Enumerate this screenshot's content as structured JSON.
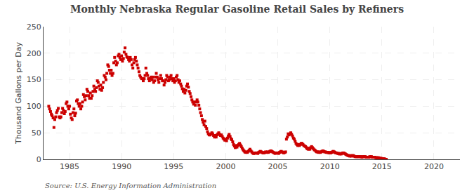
{
  "chart_data": {
    "type": "scatter",
    "title": "Monthly Nebraska Regular Gasoline Retail Sales by Refiners",
    "ylabel": "Thousand Gallons per Day",
    "annotations": [
      "Source: U.S. Energy Information Administration"
    ],
    "color": "#cc0000",
    "marker": "square",
    "grid": true,
    "xlim": [
      1982.5,
      2022.5
    ],
    "xticks": [
      1985,
      1990,
      1995,
      2000,
      2005,
      2010,
      2015,
      2020
    ],
    "ylim": [
      0,
      250
    ],
    "yticks": [
      0,
      50,
      100,
      150,
      200,
      250
    ],
    "x": [
      1983.0,
      1983.08,
      1983.17,
      1983.25,
      1983.33,
      1983.42,
      1983.5,
      1983.58,
      1983.67,
      1983.75,
      1983.83,
      1983.92,
      1984.0,
      1984.08,
      1984.17,
      1984.25,
      1984.33,
      1984.42,
      1984.5,
      1984.58,
      1984.67,
      1984.75,
      1984.83,
      1984.92,
      1985.0,
      1985.08,
      1985.17,
      1985.25,
      1985.33,
      1985.42,
      1985.5,
      1985.58,
      1985.67,
      1985.75,
      1985.83,
      1985.92,
      1986.0,
      1986.08,
      1986.17,
      1986.25,
      1986.33,
      1986.42,
      1986.5,
      1986.58,
      1986.67,
      1986.75,
      1986.83,
      1986.92,
      1987.0,
      1987.08,
      1987.17,
      1987.25,
      1987.33,
      1987.42,
      1987.5,
      1987.58,
      1987.67,
      1987.75,
      1987.83,
      1987.92,
      1988.0,
      1988.08,
      1988.17,
      1988.25,
      1988.33,
      1988.42,
      1988.5,
      1988.58,
      1988.67,
      1988.75,
      1988.83,
      1988.92,
      1989.0,
      1989.08,
      1989.17,
      1989.25,
      1989.33,
      1989.42,
      1989.5,
      1989.58,
      1989.67,
      1989.75,
      1989.83,
      1989.92,
      1990.0,
      1990.08,
      1990.17,
      1990.25,
      1990.33,
      1990.42,
      1990.5,
      1990.58,
      1990.67,
      1990.75,
      1990.83,
      1990.92,
      1991.0,
      1991.08,
      1991.17,
      1991.25,
      1991.33,
      1991.42,
      1991.5,
      1991.58,
      1991.67,
      1991.75,
      1991.83,
      1991.92,
      1992.0,
      1992.08,
      1992.17,
      1992.25,
      1992.33,
      1992.42,
      1992.5,
      1992.58,
      1992.67,
      1992.75,
      1992.83,
      1992.92,
      1993.0,
      1993.08,
      1993.17,
      1993.25,
      1993.33,
      1993.42,
      1993.5,
      1993.58,
      1993.67,
      1993.75,
      1993.83,
      1993.92,
      1994.0,
      1994.08,
      1994.17,
      1994.25,
      1994.33,
      1994.42,
      1994.5,
      1994.58,
      1994.67,
      1994.75,
      1994.83,
      1994.92,
      1995.0,
      1995.08,
      1995.17,
      1995.25,
      1995.33,
      1995.42,
      1995.5,
      1995.58,
      1995.67,
      1995.75,
      1995.83,
      1995.92,
      1996.0,
      1996.08,
      1996.17,
      1996.25,
      1996.33,
      1996.42,
      1996.5,
      1996.58,
      1996.67,
      1996.75,
      1996.83,
      1996.92,
      1997.0,
      1997.08,
      1997.17,
      1997.25,
      1997.33,
      1997.42,
      1997.5,
      1997.58,
      1997.67,
      1997.75,
      1997.83,
      1997.92,
      1998.0,
      1998.08,
      1998.17,
      1998.25,
      1998.33,
      1998.42,
      1998.5,
      1998.58,
      1998.67,
      1998.75,
      1998.83,
      1998.92,
      1999.0,
      1999.08,
      1999.17,
      1999.25,
      1999.33,
      1999.42,
      1999.5,
      1999.58,
      1999.67,
      1999.75,
      1999.83,
      1999.92,
      2000.0,
      2000.08,
      2000.17,
      2000.25,
      2000.33,
      2000.42,
      2000.5,
      2000.58,
      2000.67,
      2000.75,
      2000.83,
      2000.92,
      2001.0,
      2001.08,
      2001.17,
      2001.25,
      2001.33,
      2001.42,
      2001.5,
      2001.58,
      2001.67,
      2001.75,
      2001.83,
      2001.92,
      2002.0,
      2002.08,
      2002.17,
      2002.25,
      2002.33,
      2002.42,
      2002.5,
      2002.58,
      2002.67,
      2002.75,
      2002.83,
      2002.92,
      2003.0,
      2003.08,
      2003.17,
      2003.25,
      2003.33,
      2003.42,
      2003.5,
      2003.58,
      2003.67,
      2003.75,
      2003.83,
      2003.92,
      2004.0,
      2004.08,
      2004.17,
      2004.25,
      2004.33,
      2004.42,
      2004.5,
      2004.58,
      2004.67,
      2004.75,
      2004.83,
      2004.92,
      2005.0,
      2005.08,
      2005.17,
      2005.25,
      2005.33,
      2005.42,
      2005.5,
      2005.58,
      2005.67,
      2005.75,
      2005.83,
      2005.92,
      2006.0,
      2006.08,
      2006.17,
      2006.25,
      2006.33,
      2006.42,
      2006.5,
      2006.58,
      2006.67,
      2006.75,
      2006.83,
      2006.92,
      2007.0,
      2007.08,
      2007.17,
      2007.25,
      2007.33,
      2007.42,
      2007.5,
      2007.58,
      2007.67,
      2007.75,
      2007.83,
      2007.92,
      2008.0,
      2008.08,
      2008.17,
      2008.25,
      2008.33,
      2008.42,
      2008.5,
      2008.58,
      2008.67,
      2008.75,
      2008.83,
      2008.92,
      2009.0,
      2009.08,
      2009.17,
      2009.25,
      2009.33,
      2009.42,
      2009.5,
      2009.58,
      2009.67,
      2009.75,
      2009.83,
      2009.92,
      2010.0,
      2010.08,
      2010.17,
      2010.25,
      2010.33,
      2010.42,
      2010.5,
      2010.58,
      2010.67,
      2010.75,
      2010.83,
      2010.92,
      2011.0,
      2011.08,
      2011.17,
      2011.25,
      2011.33,
      2011.42,
      2011.5,
      2011.58,
      2011.67,
      2011.75,
      2011.83,
      2011.92,
      2012.0,
      2012.08,
      2012.17,
      2012.25,
      2012.33,
      2012.42,
      2012.5,
      2012.58,
      2012.67,
      2012.75,
      2012.83,
      2012.92,
      2013.0,
      2013.08,
      2013.17,
      2013.25,
      2013.33,
      2013.42,
      2013.5,
      2013.58,
      2013.67,
      2013.75,
      2013.83,
      2013.92,
      2014.0,
      2014.08,
      2014.17,
      2014.25,
      2014.33,
      2014.42,
      2014.5,
      2014.58,
      2014.67,
      2014.75,
      2014.83,
      2014.92,
      2015.0,
      2015.08,
      2015.17,
      2015.25,
      2015.33,
      2015.42
    ],
    "values": [
      100,
      95,
      90,
      85,
      82,
      78,
      60,
      75,
      80,
      88,
      92,
      96,
      80,
      78,
      80,
      88,
      96,
      92,
      86,
      90,
      105,
      108,
      100,
      95,
      100,
      85,
      78,
      75,
      88,
      95,
      82,
      87,
      110,
      112,
      105,
      100,
      105,
      95,
      100,
      108,
      122,
      118,
      112,
      120,
      132,
      128,
      120,
      115,
      125,
      115,
      120,
      128,
      138,
      132,
      128,
      135,
      148,
      145,
      138,
      132,
      140,
      130,
      135,
      145,
      158,
      155,
      150,
      162,
      178,
      175,
      168,
      162,
      168,
      158,
      162,
      182,
      192,
      185,
      178,
      182,
      195,
      198,
      192,
      188,
      195,
      185,
      190,
      202,
      210,
      198,
      193,
      192,
      188,
      185,
      192,
      188,
      178,
      172,
      182,
      188,
      192,
      185,
      178,
      172,
      165,
      158,
      155,
      152,
      152,
      148,
      152,
      158,
      172,
      162,
      158,
      152,
      148,
      152,
      155,
      150,
      155,
      145,
      148,
      155,
      162,
      155,
      150,
      145,
      152,
      158,
      152,
      148,
      148,
      140,
      145,
      150,
      158,
      155,
      148,
      150,
      155,
      158,
      152,
      148,
      152,
      145,
      148,
      155,
      158,
      150,
      145,
      148,
      142,
      138,
      133,
      128,
      132,
      125,
      130,
      138,
      142,
      136,
      128,
      124,
      118,
      112,
      108,
      104,
      108,
      102,
      108,
      112,
      108,
      102,
      95,
      88,
      82,
      75,
      70,
      65,
      72,
      62,
      58,
      52,
      48,
      46,
      46,
      48,
      50,
      48,
      45,
      42,
      45,
      42,
      46,
      48,
      50,
      47,
      45,
      46,
      43,
      40,
      38,
      36,
      38,
      35,
      40,
      44,
      47,
      43,
      39,
      37,
      33,
      28,
      25,
      22,
      26,
      23,
      26,
      28,
      30,
      27,
      24,
      21,
      18,
      16,
      14,
      13,
      14,
      13,
      15,
      17,
      19,
      16,
      14,
      12,
      11,
      11,
      12,
      12,
      12,
      11,
      13,
      14,
      15,
      14,
      13,
      12,
      12,
      13,
      14,
      13,
      14,
      13,
      14,
      15,
      16,
      15,
      14,
      13,
      12,
      11,
      12,
      12,
      12,
      11,
      13,
      14,
      15,
      14,
      13,
      12,
      13,
      14,
      38,
      42,
      48,
      46,
      48,
      50,
      47,
      44,
      40,
      38,
      34,
      30,
      28,
      26,
      28,
      26,
      28,
      30,
      30,
      28,
      26,
      25,
      24,
      22,
      20,
      19,
      21,
      19,
      22,
      24,
      22,
      20,
      18,
      17,
      15,
      14,
      14,
      13,
      14,
      13,
      14,
      15,
      16,
      15,
      14,
      14,
      13,
      13,
      13,
      12,
      13,
      12,
      13,
      14,
      15,
      14,
      13,
      12,
      12,
      11,
      11,
      10,
      11,
      10,
      11,
      12,
      12,
      11,
      10,
      9,
      8,
      7,
      7,
      6,
      7,
      6,
      7,
      7,
      6,
      5,
      5,
      5,
      5,
      5,
      5,
      5,
      5,
      4,
      5,
      5,
      5,
      5,
      4,
      4,
      4,
      4,
      5,
      5,
      5,
      4,
      4,
      4,
      4,
      3,
      3,
      3,
      3,
      2,
      2,
      2,
      1,
      1,
      1,
      1,
      0,
      0
    ]
  }
}
